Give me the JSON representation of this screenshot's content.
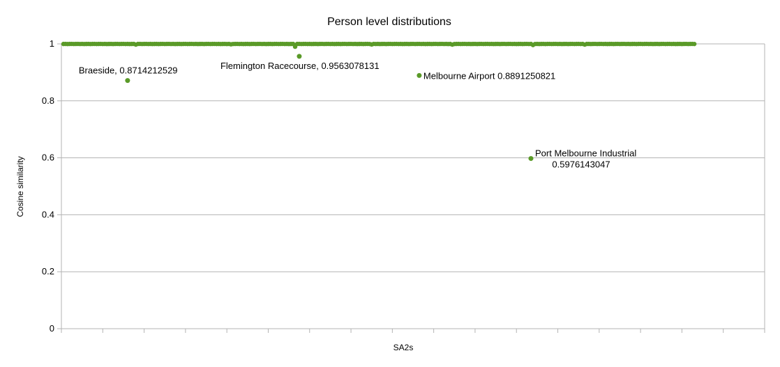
{
  "chart_data": {
    "type": "scatter",
    "title": "Person level distributions",
    "xlabel": "SA2s",
    "ylabel": "Cosine similarity",
    "ylim": [
      0,
      1
    ],
    "yticks": [
      "0",
      "0.2",
      "0.4",
      "0.6",
      "0.8",
      "1"
    ],
    "xlim": [
      0,
      340
    ],
    "grid": "horizontal",
    "legend": "none",
    "color": "#5a9a28",
    "series": [
      {
        "x_range": [
          1,
          306
        ],
        "baseline_values": "approximately 1 for all SA2s",
        "dips": [
          {
            "x": 36,
            "y": 0.9975
          },
          {
            "x": 82,
            "y": 0.9985
          },
          {
            "x": 113,
            "y": 0.99
          },
          {
            "x": 150,
            "y": 0.998
          },
          {
            "x": 189,
            "y": 0.9975
          },
          {
            "x": 228,
            "y": 0.996
          },
          {
            "x": 253,
            "y": 0.9975
          }
        ],
        "outliers": [
          {
            "x": 32,
            "y": 0.8714212529,
            "label": "Braeside, 0.8714212529"
          },
          {
            "x": 115,
            "y": 0.9563078131,
            "label": "Flemington Racecourse, 0.9563078131"
          },
          {
            "x": 173,
            "y": 0.8891250821,
            "label": "Melbourne Airport 0.8891250821"
          },
          {
            "x": 227,
            "y": 0.5976143047,
            "label_line1": "Port Melbourne Industrial",
            "label_line2": "0.5976143047"
          }
        ]
      }
    ]
  }
}
